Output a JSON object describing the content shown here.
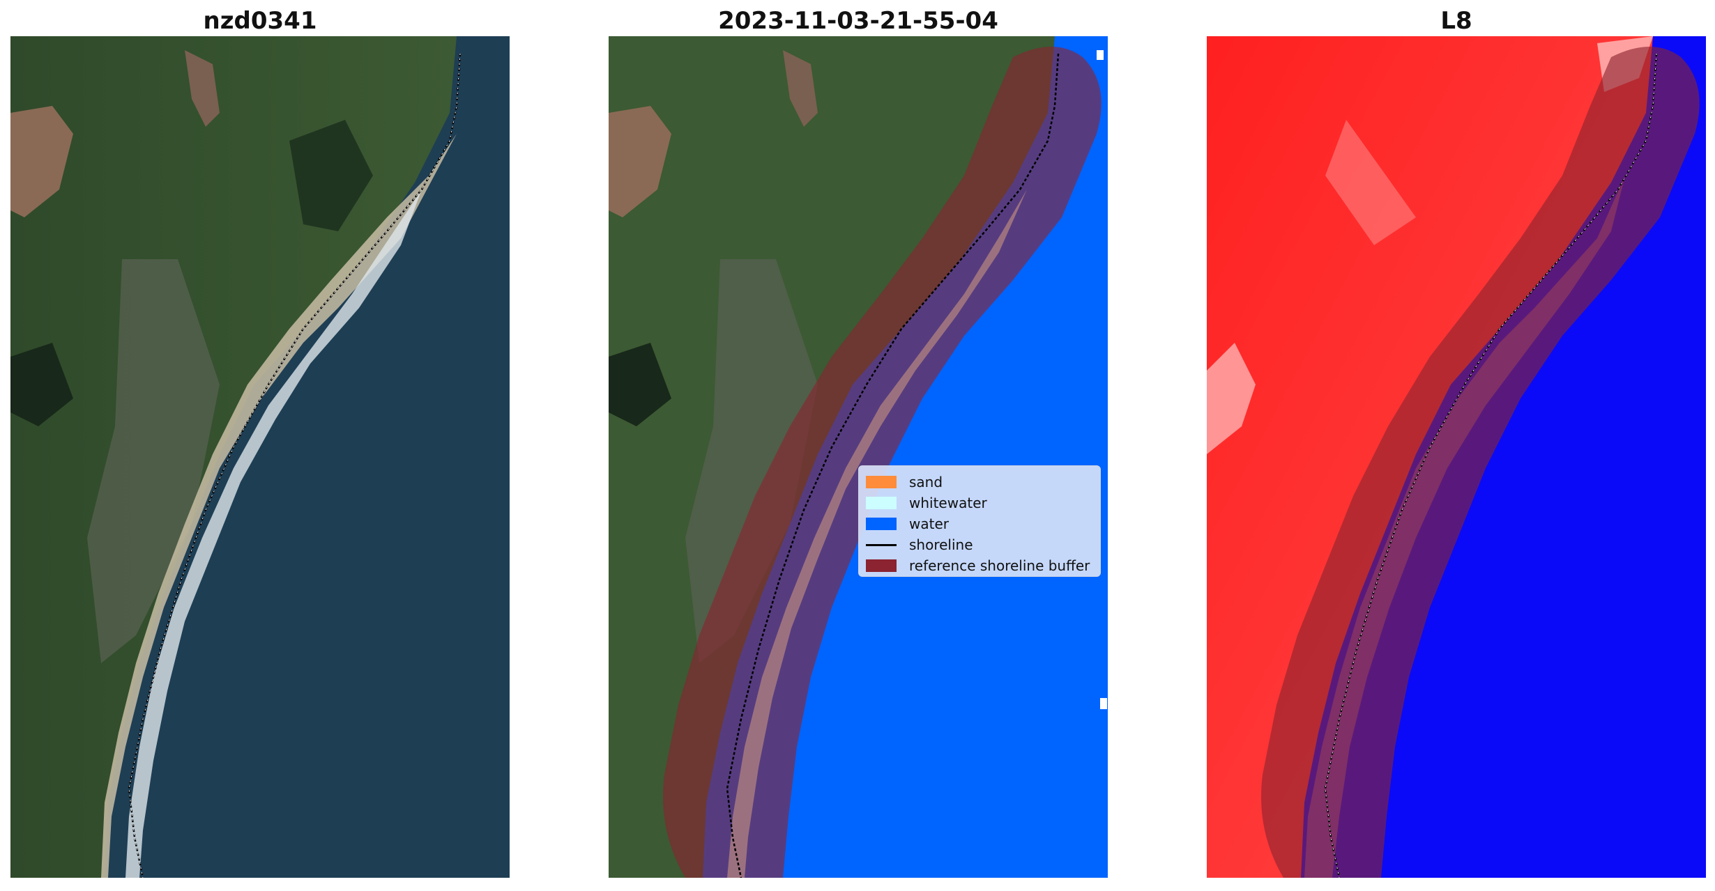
{
  "panels": [
    {
      "title": "nzd0341",
      "icon": "rgb-satellite-image"
    },
    {
      "title": "2023-11-03-21-55-04",
      "icon": "classified-image"
    },
    {
      "title": "L8",
      "icon": "index-heatmap-image"
    }
  ],
  "legend": {
    "items": [
      {
        "label": "sand",
        "color": "#ff8c3a",
        "kind": "patch"
      },
      {
        "label": "whitewater",
        "color": "#ccfdff",
        "kind": "patch"
      },
      {
        "label": "water",
        "color": "#0064ff",
        "kind": "patch"
      },
      {
        "label": "shoreline",
        "color": "#000000",
        "kind": "line"
      },
      {
        "label": "reference shoreline buffer",
        "color": "#8b2331",
        "kind": "patch"
      }
    ]
  }
}
